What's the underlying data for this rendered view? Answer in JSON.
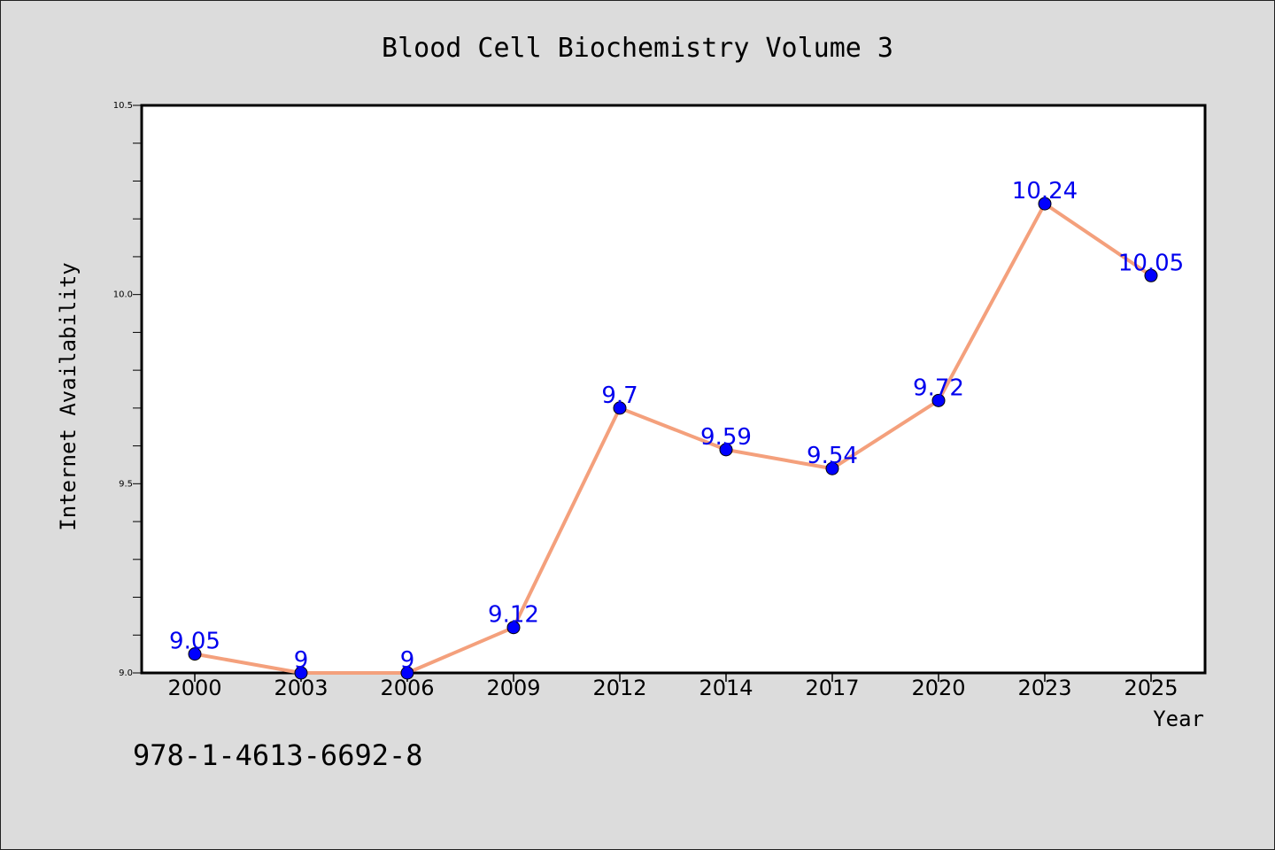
{
  "chart_data": {
    "type": "line",
    "title": "Blood Cell Biochemistry Volume 3",
    "xlabel": "Year",
    "ylabel": "Internet Availability",
    "categories": [
      "2000",
      "2003",
      "2006",
      "2009",
      "2012",
      "2014",
      "2017",
      "2020",
      "2023",
      "2025"
    ],
    "series": [
      {
        "values": [
          9.05,
          9.0,
          9.0,
          9.12,
          9.7,
          9.59,
          9.54,
          9.72,
          10.24,
          10.05
        ],
        "labels": [
          "9.05",
          "9",
          "9",
          "9.12",
          "9.7",
          "9.59",
          "9.54",
          "9.72",
          "10.24",
          "10.05"
        ]
      }
    ],
    "ylim": [
      9.0,
      10.5
    ],
    "yticks": [
      "9.0",
      "9.5",
      "10.0",
      "10.5"
    ],
    "yticks_values": [
      9.0,
      9.5,
      10.0,
      10.5
    ],
    "grid": false,
    "line_color": "#f4a07c",
    "marker_color": "#0000ff",
    "label_color": "#0000ee"
  },
  "footer": {
    "isbn": "978-1-4613-6692-8"
  }
}
